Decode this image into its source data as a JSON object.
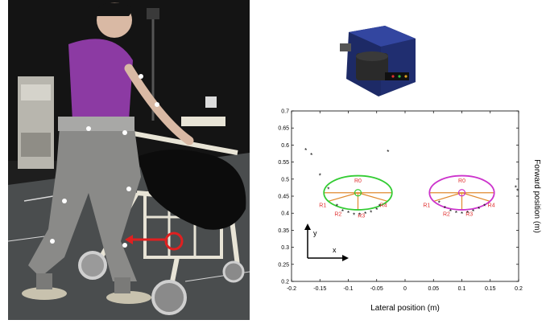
{
  "figure": {
    "photo_caption": "",
    "sensor_caption": ""
  },
  "chart_data": {
    "type": "scatter",
    "title": "",
    "xlabel": "Lateral position (m)",
    "ylabel": "Forward position (m)",
    "xlim": [
      -0.2,
      0.2
    ],
    "ylim": [
      0.2,
      0.7
    ],
    "xticks": [
      -0.2,
      -0.15,
      -0.1,
      -0.05,
      0,
      0.05,
      0.1,
      0.15,
      0.2
    ],
    "xtick_labels": [
      "-0.2",
      "-0.15",
      "-0.1",
      "-0.05",
      "0",
      "0.05",
      "0.1",
      "0.15",
      "0.2"
    ],
    "yticks": [
      0.2,
      0.25,
      0.3,
      0.35,
      0.4,
      0.45,
      0.5,
      0.55,
      0.6,
      0.65,
      0.7
    ],
    "ytick_labels": [
      "0.2",
      "0.25",
      "0.3",
      "0.35",
      "0.4",
      "0.45",
      "0.5",
      "0.55",
      "0.6",
      "0.65",
      "0.7"
    ],
    "grid": false,
    "axis_arrows": {
      "x_label": "x",
      "y_label": "y"
    },
    "scan_points": [
      [
        -0.175,
        0.585
      ],
      [
        -0.165,
        0.57
      ],
      [
        -0.15,
        0.51
      ],
      [
        -0.135,
        0.47
      ],
      [
        -0.03,
        0.58
      ],
      [
        -0.12,
        0.42
      ],
      [
        -0.11,
        0.405
      ],
      [
        -0.1,
        0.4
      ],
      [
        -0.09,
        0.395
      ],
      [
        -0.08,
        0.395
      ],
      [
        -0.07,
        0.398
      ],
      [
        -0.06,
        0.402
      ],
      [
        -0.05,
        0.41
      ],
      [
        -0.045,
        0.42
      ],
      [
        0.06,
        0.43
      ],
      [
        0.07,
        0.415
      ],
      [
        0.08,
        0.405
      ],
      [
        0.09,
        0.4
      ],
      [
        0.1,
        0.398
      ],
      [
        0.11,
        0.4
      ],
      [
        0.12,
        0.405
      ],
      [
        0.13,
        0.412
      ],
      [
        0.14,
        0.42
      ],
      [
        0.195,
        0.475
      ],
      [
        0.198,
        0.465
      ]
    ],
    "feet": [
      {
        "name": "",
        "color": "#33cc33",
        "center": [
          -0.083,
          0.46
        ],
        "semi_axes": [
          0.06,
          0.05
        ],
        "labels": [
          {
            "text": "R0",
            "at": [
              -0.083,
              0.49
            ]
          },
          {
            "text": "R1",
            "at": [
              -0.145,
              0.418
            ]
          },
          {
            "text": "R2",
            "at": [
              -0.118,
              0.392
            ]
          },
          {
            "text": "R3",
            "at": [
              -0.077,
              0.388
            ]
          },
          {
            "text": "R4",
            "at": [
              -0.038,
              0.418
            ]
          }
        ]
      },
      {
        "name": "",
        "color": "#cc33cc",
        "center": [
          0.1,
          0.46
        ],
        "semi_axes": [
          0.057,
          0.05
        ],
        "labels": [
          {
            "text": "R0",
            "at": [
              0.1,
              0.49
            ]
          },
          {
            "text": "R1",
            "at": [
              0.038,
              0.418
            ]
          },
          {
            "text": "R2",
            "at": [
              0.073,
              0.392
            ]
          },
          {
            "text": "R3",
            "at": [
              0.113,
              0.392
            ]
          },
          {
            "text": "R4",
            "at": [
              0.152,
              0.418
            ]
          }
        ]
      }
    ],
    "colors": {
      "rays": "#e08a2e",
      "labels": "#e03030",
      "points": "#000000"
    }
  }
}
